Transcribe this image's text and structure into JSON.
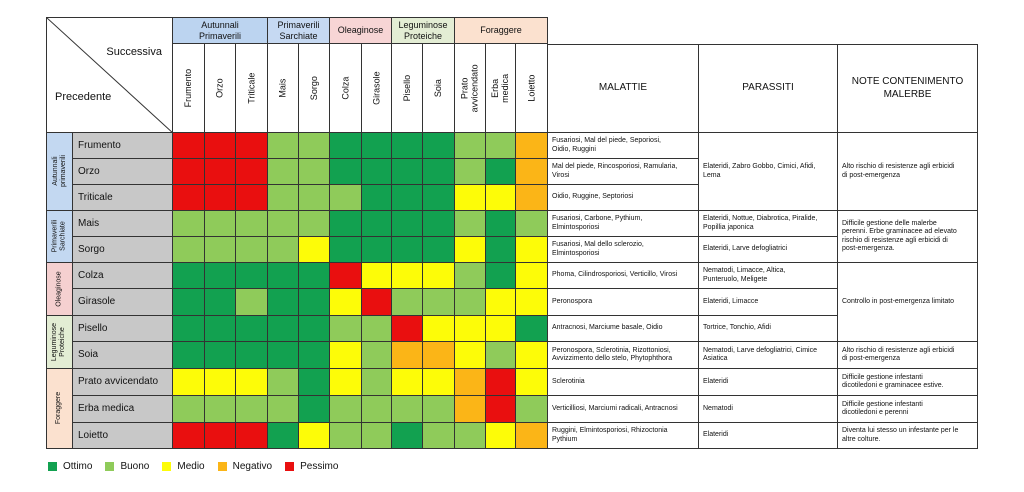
{
  "colors": {
    "ottimo": "#12a150",
    "buono": "#8fcb5a",
    "medio": "#fdfc08",
    "negativo": "#fbb517",
    "pessimo": "#e90f0f"
  },
  "header": {
    "successiva_label": "Successiva",
    "precedente_label": "Precedente",
    "groups": [
      {
        "label": "Autunnali\nPrimaverili",
        "bg": "#bcd4f0"
      },
      {
        "label": "Primaverili\nSarchiate",
        "bg": "#c6d9f2"
      },
      {
        "label": "Oleaginose",
        "bg": "#f7d5d5"
      },
      {
        "label": "Leguminose\nProteiche",
        "bg": "#e3edd4"
      },
      {
        "label": "Foraggere",
        "bg": "#fbe1cf"
      }
    ],
    "columns": [
      "Frumento",
      "Orzo",
      "Triticale",
      "Mais",
      "Sorgo",
      "Colza",
      "Girasole",
      "Pisello",
      "Soia",
      "Prato avvicendato",
      "Erba medica",
      "Loietto"
    ],
    "malattie_label": "MALATTIE",
    "parassiti_label": "PARASSITI",
    "note_label": "NOTE CONTENIMENTO\nMALERBE"
  },
  "row_groups": [
    {
      "label": "Autunnali\nprimaverili",
      "bg": "#c3d8f1"
    },
    {
      "label": "Primaverili\nSarchiate",
      "bg": "#c3d8f1"
    },
    {
      "label": "Oleaginose",
      "bg": "#f5d0d0"
    },
    {
      "label": "Leguminose\nProteiche",
      "bg": "#e3edd4"
    },
    {
      "label": "Foraggere",
      "bg": "#fbe1cf"
    }
  ],
  "rows": [
    {
      "name": "Frumento",
      "ratings": [
        "P",
        "P",
        "P",
        "B",
        "B",
        "O",
        "O",
        "O",
        "O",
        "B",
        "B",
        "N"
      ],
      "malattie": "Fusariosi, Mal del piede, Seporiosi,\nOidio, Ruggini"
    },
    {
      "name": "Orzo",
      "ratings": [
        "P",
        "P",
        "P",
        "B",
        "B",
        "O",
        "O",
        "O",
        "O",
        "B",
        "O",
        "N"
      ],
      "malattie": "Mal del piede, Rincosporiosi, Ramularia,\nVirosi"
    },
    {
      "name": "Triticale",
      "ratings": [
        "P",
        "P",
        "P",
        "B",
        "B",
        "B",
        "O",
        "O",
        "O",
        "M",
        "M",
        "N"
      ],
      "malattie": "Oidio, Ruggine, Septoriosi"
    },
    {
      "name": "Mais",
      "ratings": [
        "B",
        "B",
        "B",
        "B",
        "B",
        "O",
        "O",
        "O",
        "O",
        "B",
        "O",
        "B"
      ],
      "malattie": "Fusariosi, Carbone, Pythium,\nElmintosporiosi"
    },
    {
      "name": "Sorgo",
      "ratings": [
        "B",
        "B",
        "B",
        "B",
        "M",
        "O",
        "O",
        "O",
        "O",
        "M",
        "O",
        "M"
      ],
      "malattie": "Fusariosi, Mal dello sclerozio,\nElmintosporiosi"
    },
    {
      "name": "Colza",
      "ratings": [
        "O",
        "O",
        "O",
        "O",
        "O",
        "P",
        "M",
        "M",
        "M",
        "B",
        "O",
        "M"
      ],
      "malattie": "Phoma, Cilindrosporiosi, Verticillo, Virosi"
    },
    {
      "name": "Girasole",
      "ratings": [
        "O",
        "O",
        "B",
        "O",
        "O",
        "M",
        "P",
        "B",
        "B",
        "B",
        "M",
        "M"
      ],
      "malattie": "Peronospora"
    },
    {
      "name": "Pisello",
      "ratings": [
        "O",
        "O",
        "O",
        "O",
        "O",
        "B",
        "B",
        "P",
        "M",
        "M",
        "M",
        "O"
      ],
      "malattie": "Antracnosi, Marciume basale, Oidio"
    },
    {
      "name": "Soia",
      "ratings": [
        "O",
        "O",
        "O",
        "O",
        "O",
        "M",
        "B",
        "N",
        "N",
        "M",
        "B",
        "M"
      ],
      "malattie": "Peronospora, Sclerotinia, Rizottoniosi,\nAvvizzimento dello stelo, Phytophthora"
    },
    {
      "name": "Prato avvicendato",
      "ratings": [
        "M",
        "M",
        "M",
        "B",
        "O",
        "M",
        "B",
        "M",
        "M",
        "N",
        "P",
        "M"
      ],
      "malattie": "Sclerotinia"
    },
    {
      "name": "Erba medica",
      "ratings": [
        "B",
        "B",
        "B",
        "B",
        "O",
        "B",
        "B",
        "B",
        "B",
        "N",
        "P",
        "B"
      ],
      "malattie": "Verticilliosi, Marciumi radicali, Antracnosi"
    },
    {
      "name": "Loietto",
      "ratings": [
        "P",
        "P",
        "P",
        "O",
        "M",
        "B",
        "B",
        "O",
        "B",
        "B",
        "M",
        "N"
      ],
      "malattie": "Ruggini, Elmintosporiosi, Rhizoctonia\nPythium"
    }
  ],
  "parassiti_blocks": [
    "Elateridi, Zabro Gobbo, Cimici, Afidi,\nLema",
    "Elateridi, Nottue, Diabrotica, Piralide,\nPopillia japonica",
    "Elateridi, Larve defogliatrici",
    "Nematodi, Limacce, Altica,\nPunteruolo, Meligete",
    "Elateridi, Limacce",
    "Tortrice, Tonchio, Afidi",
    "Nematodi, Larve defogliatrici, Cimice\nAsiatica",
    "Elateridi",
    "Nematodi",
    "Elateridi"
  ],
  "note_blocks": [
    "Alto rischio di resistenze agli erbicidi\ndi post-emergenza",
    "Difficile gestione delle malerbe\nperenni. Erbe graminacee ad elevato\nrischio di resistenze agli erbicidi di\npost-emergenza.",
    "Controllo in post-emergenza limitato",
    "Alto rischio di resistenze agli erbicidi\ndi post-emergenza",
    "Difficile gestione infestanti\ndicotiledoni e graminacee estive.",
    "Difficile gestione infestanti\ndicotiledoni e perenni",
    "Diventa lui stesso un infestante per le\naltre colture."
  ],
  "legend": [
    {
      "key": "O",
      "label": "Ottimo"
    },
    {
      "key": "B",
      "label": "Buono"
    },
    {
      "key": "M",
      "label": "Medio"
    },
    {
      "key": "N",
      "label": "Negativo"
    },
    {
      "key": "P",
      "label": "Pessimo"
    }
  ]
}
